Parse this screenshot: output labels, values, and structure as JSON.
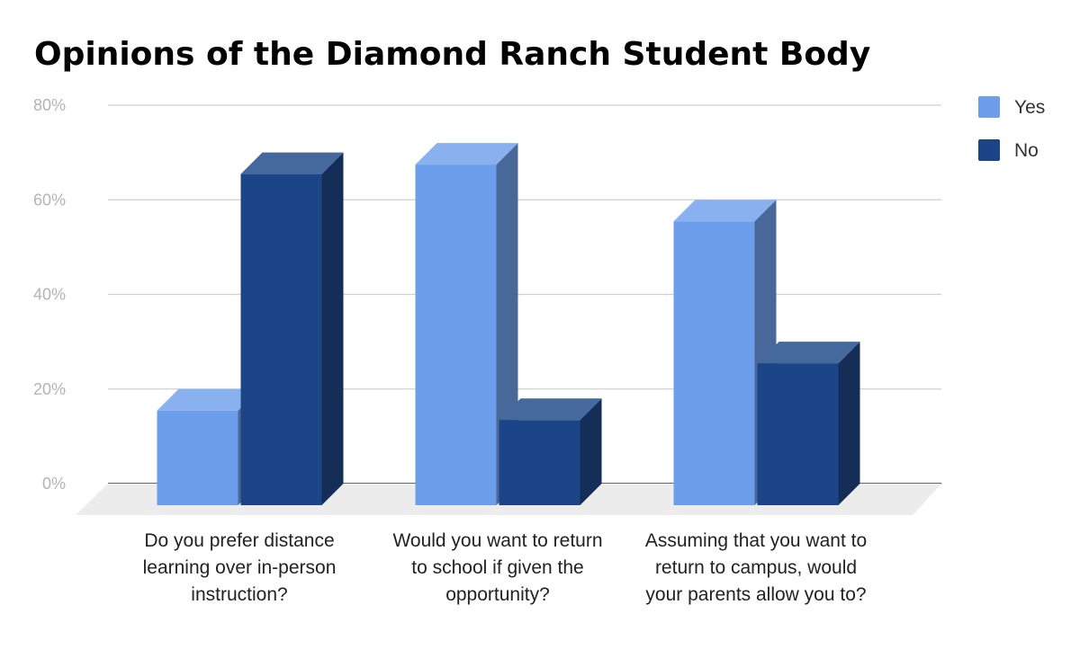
{
  "chart_data": {
    "type": "bar",
    "title": "Opinions of the Diamond Ranch Student Body",
    "categories": [
      "Do you prefer distance learning over in-person instruction?",
      "Would you want to return to school if given the opportunity?",
      "Assuming that you want to return to campus, would your parents allow you to?"
    ],
    "series": [
      {
        "name": "Yes",
        "values": [
          20,
          72,
          60
        ],
        "color": "#6d9eeb",
        "top_color": "#8ab1ef",
        "side_color": "#476898"
      },
      {
        "name": "No",
        "values": [
          70,
          18,
          30
        ],
        "color": "#1c4587",
        "top_color": "#45689d",
        "side_color": "#142e58"
      }
    ],
    "ylim": [
      0,
      80
    ],
    "yticks": [
      "0%",
      "20%",
      "40%",
      "60%",
      "80%"
    ],
    "grid": true,
    "legend_position": "top-right",
    "style": "3d"
  }
}
